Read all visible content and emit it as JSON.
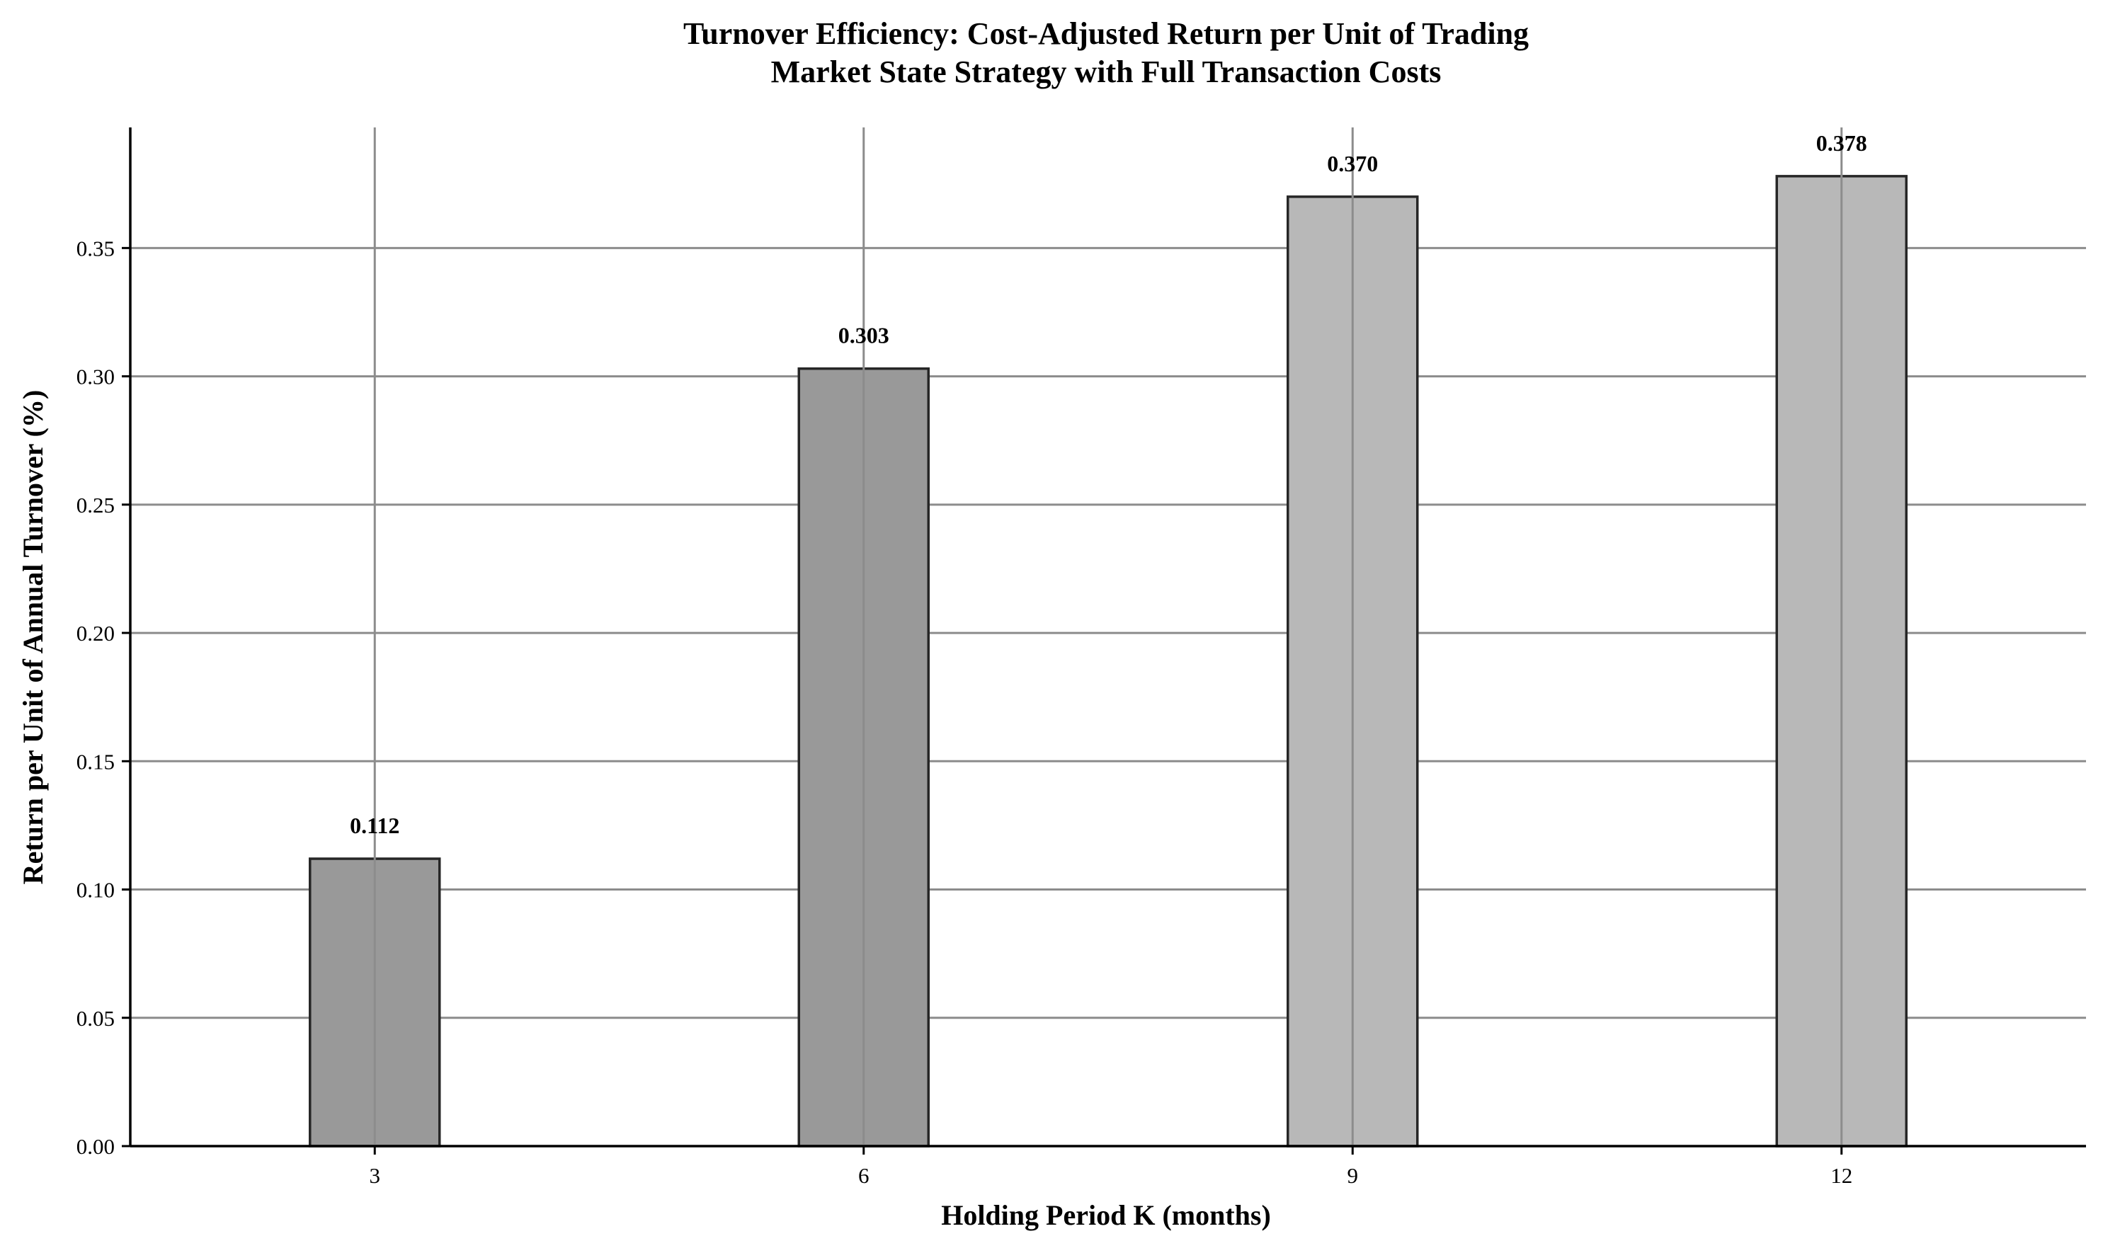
{
  "chart_data": {
    "type": "bar",
    "title_line1": "Turnover Efficiency: Cost-Adjusted Return per Unit of Trading",
    "title_line2": "Market State Strategy with Full Transaction Costs",
    "xlabel": "Holding Period K (months)",
    "ylabel": "Return per Unit of Annual Turnover (%)",
    "categories": [
      "3",
      "6",
      "9",
      "12"
    ],
    "values": [
      0.112,
      0.303,
      0.37,
      0.378
    ],
    "value_labels": [
      "0.112",
      "0.303",
      "0.370",
      "0.378"
    ],
    "bar_colors": [
      "#999999",
      "#999999",
      "#b8b8b8",
      "#b8b8b8"
    ],
    "ylim": [
      0,
      0.397
    ],
    "yticks": [
      0.0,
      0.05,
      0.1,
      0.15,
      0.2,
      0.25,
      0.3,
      0.35
    ],
    "ytick_labels": [
      "0.00",
      "0.05",
      "0.10",
      "0.15",
      "0.20",
      "0.25",
      "0.30",
      "0.35"
    ],
    "grid": true,
    "legend": "none"
  }
}
